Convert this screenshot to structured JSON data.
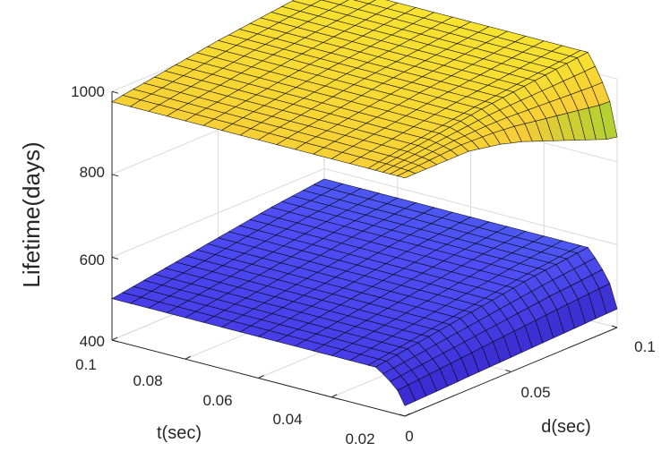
{
  "chart_data": {
    "type": "surface",
    "title": "",
    "xlabel": "d(sec)",
    "ylabel": "t(sec)",
    "zlabel": "Lifetime(days)",
    "xlim": [
      0,
      0.1
    ],
    "ylim": [
      0.02,
      0.1
    ],
    "zlim": [
      400,
      1000
    ],
    "xticks": [
      "0",
      "0.05",
      "0.1"
    ],
    "yticks": [
      "0.02",
      "0.04",
      "0.06",
      "0.08",
      "0.1"
    ],
    "zticks": [
      "400",
      "600",
      "800",
      "1000"
    ],
    "grid": true,
    "colormap": "parula",
    "d_values": [
      0,
      0.005,
      0.01,
      0.015,
      0.02,
      0.025,
      0.03,
      0.035,
      0.04,
      0.045,
      0.05,
      0.055,
      0.06,
      0.065,
      0.07,
      0.075,
      0.08,
      0.085,
      0.09,
      0.095,
      0.1
    ],
    "t_values": [
      0.02,
      0.022,
      0.024,
      0.026,
      0.028,
      0.03,
      0.035,
      0.04,
      0.045,
      0.05,
      0.055,
      0.06,
      0.065,
      0.07,
      0.075,
      0.08,
      0.085,
      0.09,
      0.095,
      0.1
    ],
    "series": [
      {
        "lifetime_at_t_0_1": [
          975,
          980,
          984,
          988,
          992,
          996,
          1000,
          1004,
          1008,
          1012,
          1016,
          1019,
          1022,
          1025,
          1028,
          1031,
          1034,
          1037,
          1040,
          1043,
          1046
        ],
        "lifetime_at_t_0_02": [
          975,
          975,
          975,
          975,
          975,
          975,
          975,
          970,
          965,
          960,
          952,
          945,
          935,
          925,
          915,
          905,
          895,
          885,
          875,
          865,
          860
        ]
      },
      {
        "lifetime_at_t_0_1": [
          500,
          504,
          508,
          512,
          516,
          520,
          524,
          528,
          532,
          536,
          540,
          544,
          548,
          552,
          556,
          560,
          563,
          566,
          569,
          572,
          575
        ],
        "lifetime_at_t_0_02": [
          425,
          426,
          427,
          428,
          429,
          430,
          431,
          432,
          433,
          434,
          435,
          436,
          437,
          438,
          439,
          440,
          441,
          442,
          443,
          444,
          445
        ]
      }
    ],
    "colors": {
      "upper_surface": "#f5e033",
      "upper_low_edge": "#4fc35c",
      "lower_surface": "#4a3ef0",
      "lower_dark": "#2e2497",
      "grid": "#dadada",
      "axis": "#262626"
    }
  }
}
